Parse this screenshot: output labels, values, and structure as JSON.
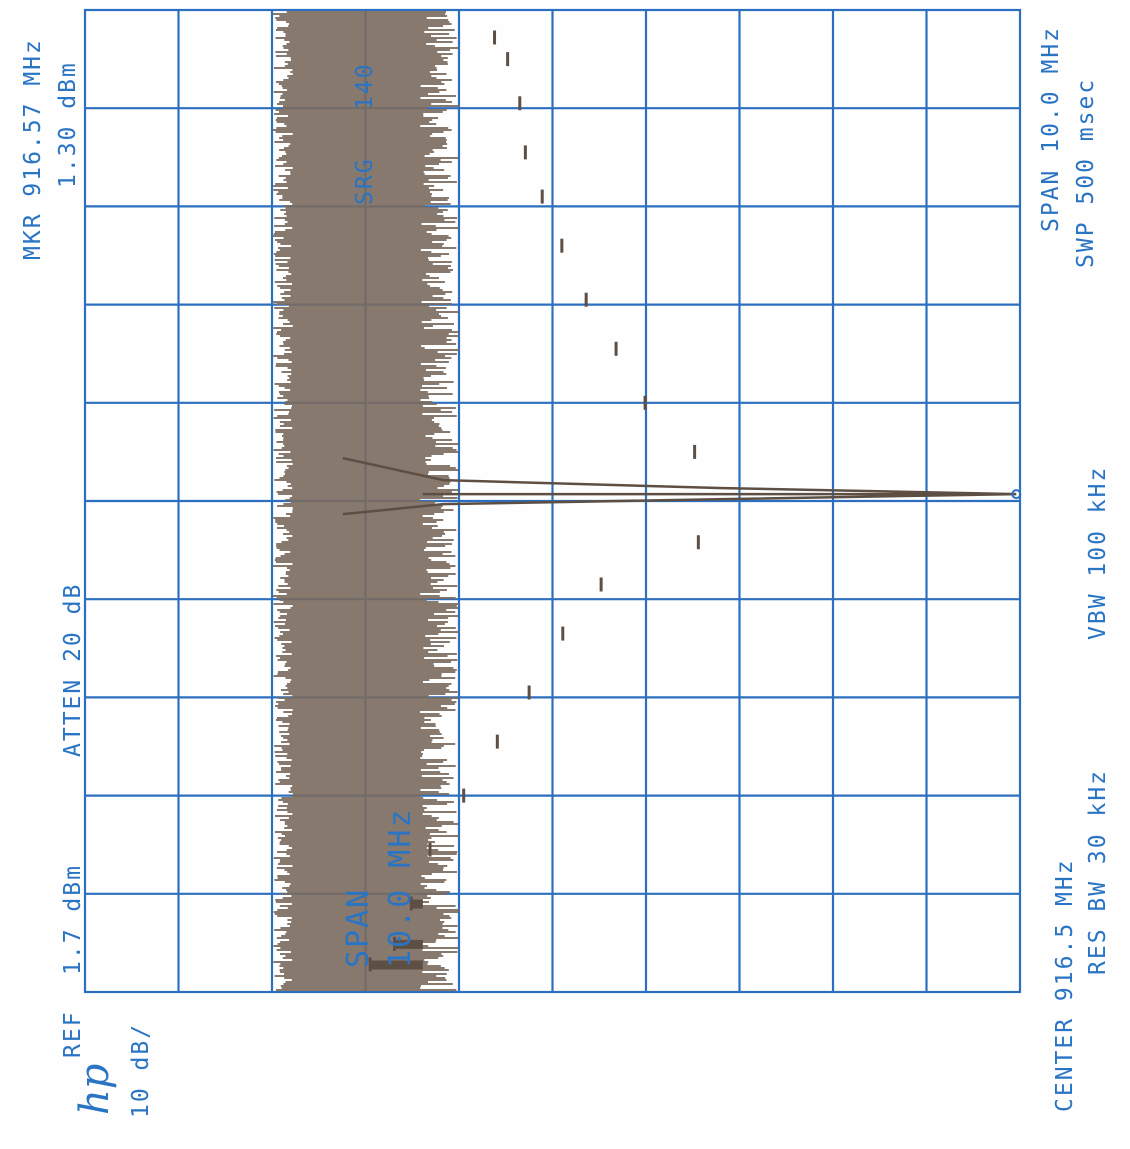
{
  "logo_text": "hp",
  "header": {
    "ref_label": "REF",
    "ref_value": "1.7 dBm",
    "atten": "ATTEN 20 dB",
    "scale": "10 dB/",
    "marker_freq": "MKR 916.57 MHz",
    "marker_level": "1.30 dBm"
  },
  "footer": {
    "center": "CENTER 916.5 MHz",
    "res_bw": "RES BW 30 kHz",
    "vbw": "VBW 100 kHz",
    "span": "SPAN 10.0 MHz",
    "sweep": "SWP 500 msec"
  },
  "annotations": {
    "span_title": "SPAN",
    "span_value": "10.0 MHz",
    "sr": "SRG",
    "sr_value": "140"
  },
  "colors": {
    "grid": "#2c6fc0",
    "text": "#2a74c4",
    "trace": "#7a6a5e",
    "trace_dark": "#5e4f44"
  },
  "chart_data": {
    "type": "line",
    "title": "",
    "xlabel": "",
    "ylabel": "",
    "center_mhz": 916.5,
    "span_mhz": 10.0,
    "ref_level_dbm": 1.7,
    "db_per_div": 10,
    "ylim": [
      -98.3,
      1.7
    ],
    "xlim": [
      911.5,
      921.5
    ],
    "grid": true,
    "series": [
      {
        "spur_offsets_mhz": [
          -4.72,
          -4.51,
          -4.1,
          -3.55,
          -3.0,
          -2.45,
          -1.95,
          -1.35,
          -0.85,
          -0.42,
          0.5,
          1.0,
          1.55,
          2.05,
          2.6,
          3.1,
          3.55,
          4.05,
          4.5,
          4.72
        ],
        "spur_levels_dbm": [
          -67.8,
          -65.2,
          -63.4,
          -61.4,
          -57.8,
          -54.2,
          -50.8,
          -47.2,
          -43.1,
          -32.7,
          -33.1,
          -38.4,
          -41.5,
          -44.7,
          -47.3,
          -49.4,
          -51.2,
          -51.8,
          -53.1,
          -54.5
        ],
        "floor_level_dbm": -75.0,
        "marker": {
          "freq_mhz": 916.57,
          "level_dbm": 1.3
        }
      }
    ]
  }
}
